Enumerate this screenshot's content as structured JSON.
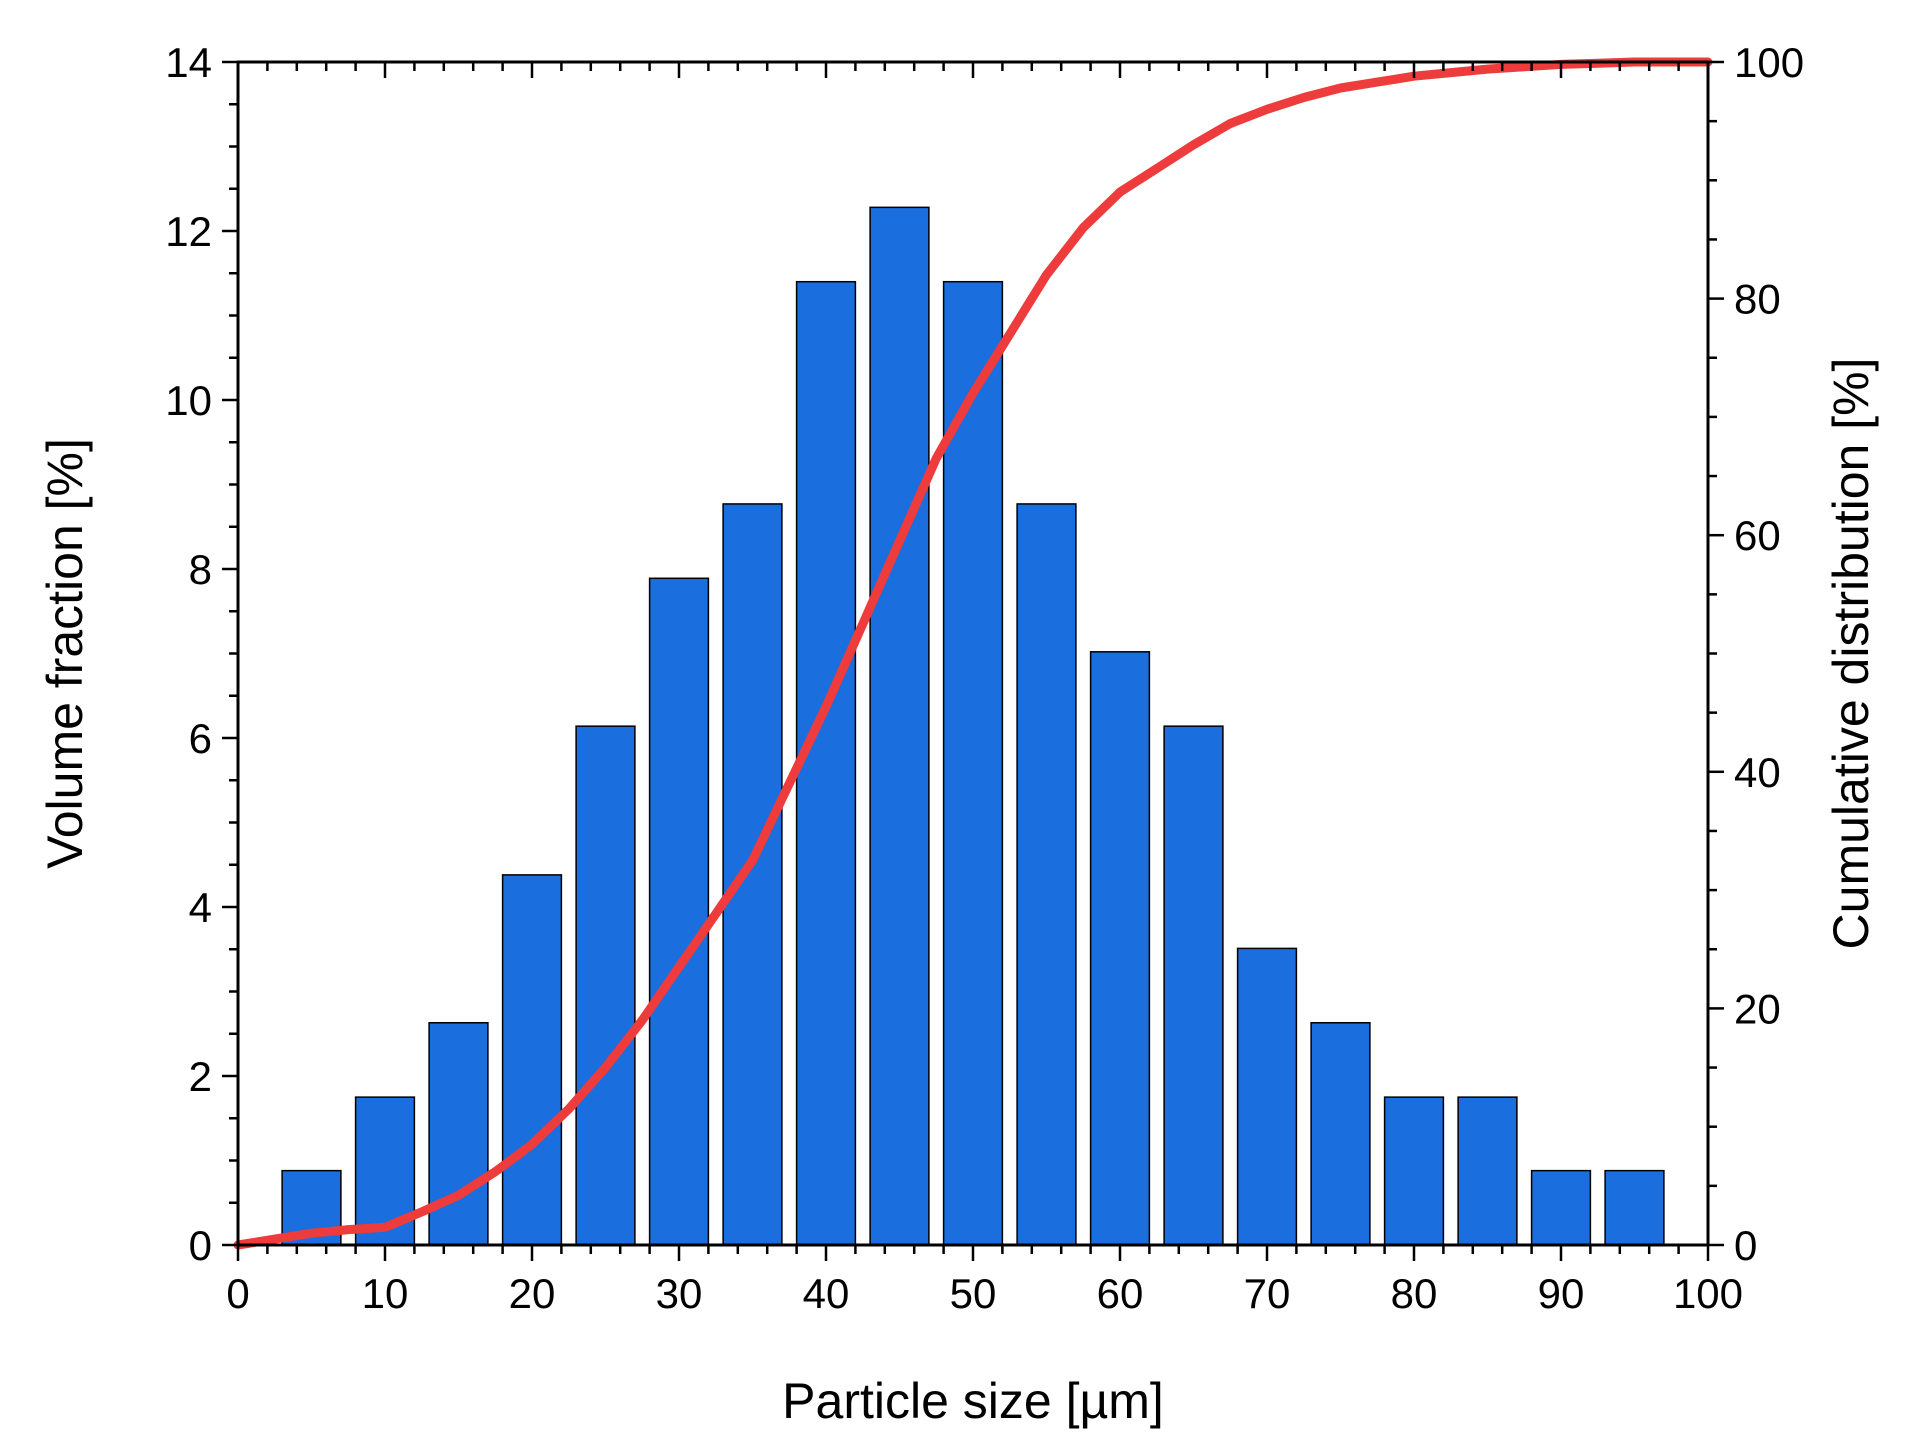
{
  "chart_data": {
    "type": "bar",
    "title": "",
    "xlabel": "Particle size [µm]",
    "ylabel": "Volume fraction [%]",
    "y2label": "Cumulative distribution [%]",
    "xlim": [
      0,
      100
    ],
    "ylim": [
      0,
      14
    ],
    "y2lim": [
      0,
      100
    ],
    "x_ticks": [
      "0",
      "10",
      "20",
      "30",
      "40",
      "50",
      "60",
      "70",
      "80",
      "90",
      "100"
    ],
    "y_ticks": [
      "0",
      "2",
      "4",
      "6",
      "8",
      "10",
      "12",
      "14"
    ],
    "y2_ticks": [
      "0",
      "20",
      "40",
      "60",
      "80",
      "100"
    ],
    "grid": false,
    "legend": "none",
    "bars": {
      "color": "#1a6ede",
      "bin_width": 4,
      "x": [
        5,
        10,
        15,
        20,
        25,
        30,
        35,
        40,
        45,
        50,
        55,
        60,
        65,
        70,
        75,
        80,
        85,
        90,
        95
      ],
      "values": [
        0.88,
        1.75,
        2.63,
        4.38,
        6.14,
        7.89,
        8.77,
        11.4,
        12.28,
        11.4,
        8.77,
        7.02,
        6.14,
        3.51,
        2.63,
        1.75,
        1.75,
        0.88,
        0.88
      ]
    },
    "cumulative": {
      "color": "#ee3b3b",
      "axis": "right",
      "x": [
        0,
        2.5,
        5,
        7.5,
        10,
        12.5,
        15,
        17.5,
        20,
        22.5,
        25,
        27.5,
        30,
        32.5,
        35,
        37.5,
        40,
        42.5,
        45,
        47.5,
        50,
        52.5,
        55,
        57.5,
        60,
        62.5,
        65,
        67.5,
        70,
        72.5,
        75,
        77.5,
        80,
        82.5,
        85,
        87.5,
        90,
        92.5,
        95,
        97.5,
        100
      ],
      "values": [
        0,
        0.5,
        1,
        1.3,
        1.5,
        2.8,
        4.2,
        6.2,
        8.5,
        11.5,
        15,
        19,
        23.5,
        28,
        32.5,
        39,
        45.5,
        52.5,
        59.5,
        66.5,
        72,
        77,
        82,
        86,
        89,
        91,
        93,
        94.8,
        96,
        97,
        97.8,
        98.3,
        98.8,
        99.1,
        99.4,
        99.6,
        99.8,
        99.9,
        100,
        100,
        100
      ]
    }
  }
}
